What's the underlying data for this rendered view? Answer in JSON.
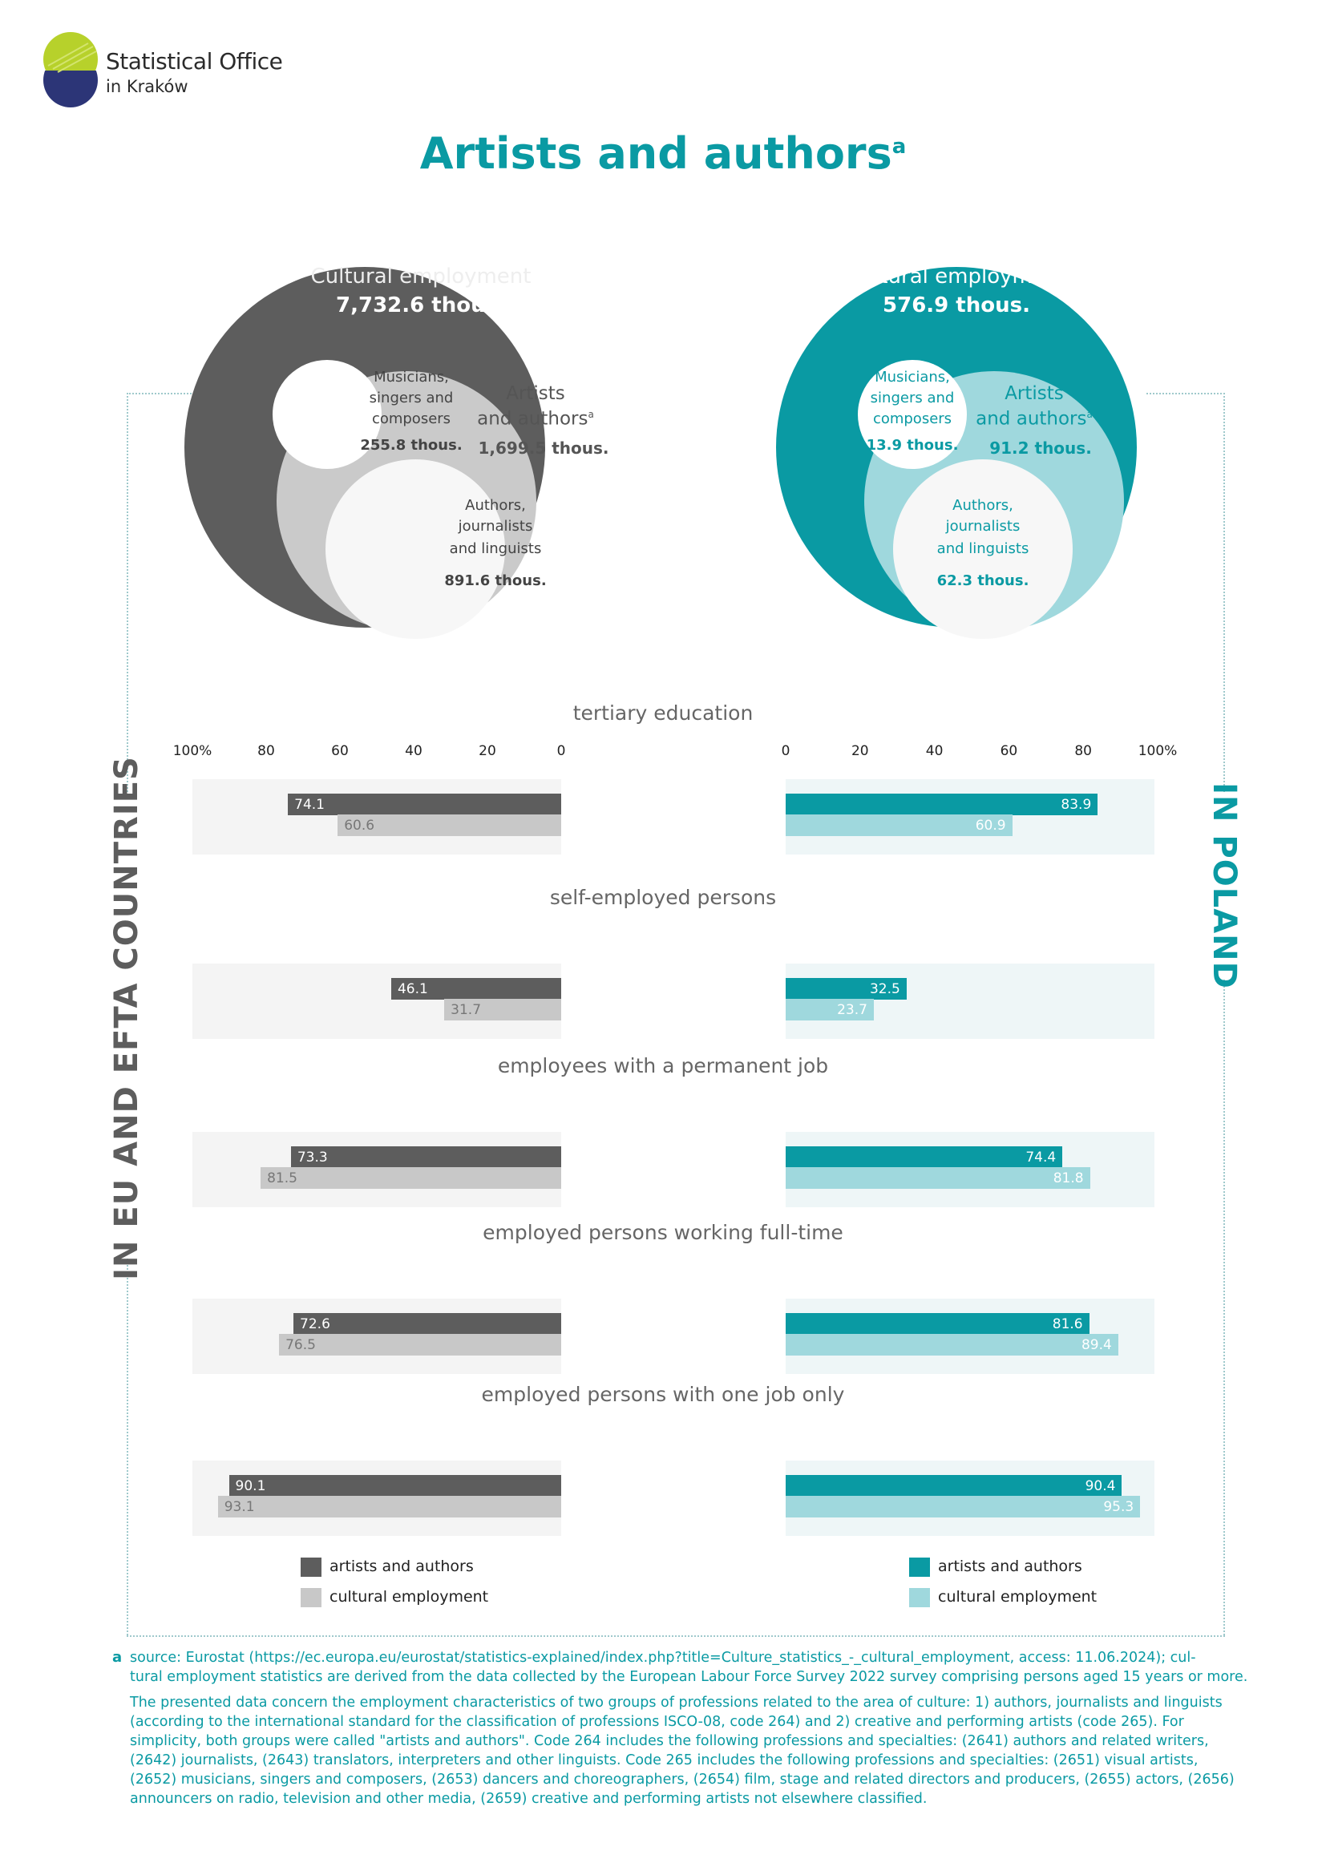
{
  "header": {
    "org_line1": "Statistical Office",
    "org_line2": "in Kraków",
    "title": "Artists and authors",
    "title_sup": "a"
  },
  "colors": {
    "eu_dark": "#5d5d5d",
    "eu_light": "#c8c8c8",
    "pl_dark": "#0a9aa3",
    "pl_light": "#9fd8dd",
    "accent": "#0a9aa3"
  },
  "side_labels": {
    "left": "IN EU AND EFTA COUNTRIES",
    "right": "IN POLAND"
  },
  "venn": {
    "eu": {
      "outer_label": "Cultural employment",
      "outer_value": "7,732.6 thous.",
      "mid_label_1": "Artists",
      "mid_label_2": "and authors",
      "mid_sup": "a",
      "mid_value": "1,699.5 thous.",
      "small_label_1": "Musicians,",
      "small_label_2": "singers and",
      "small_label_3": "composers",
      "small_value": "255.8 thous.",
      "inner_label_1": "Authors,",
      "inner_label_2": "journalists",
      "inner_label_3": "and linguists",
      "inner_value": "891.6 thous."
    },
    "pl": {
      "outer_label": "Cultural employment",
      "outer_value": "576.9 thous.",
      "mid_label_1": "Artists",
      "mid_label_2": "and authors",
      "mid_sup": "a",
      "mid_value": "91.2 thous.",
      "small_label_1": "Musicians,",
      "small_label_2": "singers and",
      "small_label_3": "composers",
      "small_value": "13.9 thous.",
      "inner_label_1": "Authors,",
      "inner_label_2": "journalists",
      "inner_label_3": "and linguists",
      "inner_value": "62.3 thous."
    }
  },
  "chart_data": {
    "type": "bar",
    "orientation": "horizontal",
    "axis_eu": {
      "ticks": [
        "100%",
        "80",
        "60",
        "40",
        "20",
        "0"
      ],
      "range": [
        0,
        100
      ],
      "direction": "right-to-left"
    },
    "axis_pl": {
      "ticks": [
        "0",
        "20",
        "40",
        "60",
        "80",
        "100%"
      ],
      "range": [
        0,
        100
      ],
      "direction": "left-to-right"
    },
    "categories": [
      "tertiary education",
      "self-employed persons",
      "employees with a permanent job",
      "employed persons working full-time",
      "employed persons with one job only"
    ],
    "eu": {
      "artists_and_authors": [
        74.1,
        46.1,
        73.3,
        72.6,
        90.1
      ],
      "cultural_employment": [
        60.6,
        31.7,
        81.5,
        76.5,
        93.1
      ],
      "artists_and_authors_labels": [
        "74.1",
        "46.1",
        "73.3",
        "72.6",
        "90.1"
      ],
      "cultural_employment_labels": [
        "60.6",
        "31.7",
        "81.5",
        "76.5",
        "93.1"
      ]
    },
    "pl": {
      "artists_and_authors": [
        83.9,
        32.5,
        74.4,
        81.6,
        90.4
      ],
      "cultural_employment": [
        60.9,
        23.7,
        81.8,
        89.4,
        95.3
      ],
      "artists_and_authors_labels": [
        "83.9",
        "32.5",
        "74.4",
        "81.6",
        "90.4"
      ],
      "cultural_employment_labels": [
        "60.9",
        "23.7",
        "81.8",
        "89.4",
        "95.3"
      ]
    },
    "legend": {
      "series_1": "artists and authors",
      "series_2": "cultural employment"
    }
  },
  "footnote": {
    "marker": "a",
    "line1": "source: Eurostat  (https://ec.europa.eu/eurostat/statistics-explained/index.php?title=Culture_statistics_-_cultural_employment,  access: 11.06.2024); cul-",
    "line2": "tural employment statistics are derived from the data collected by the European Labour Force Survey 2022 survey comprising persons aged 15 years or more.",
    "para": "The presented data concern the employment characteristics of two groups of professions related to the area of culture: 1) authors, journalists and linguists (according to the international standard for the classification of professions ISCO-08, code 264) and 2) creative and performing artists (code 265). For simplicity, both groups were called \"artists and authors\". Code 264 includes the following professions and specialties: (2641) authors and related writers, (2642) journalists, (2643) translators, interpreters and other linguists. Code 265 includes the following professions and specialties: (2651) visual artists, (2652) musicians, singers and composers, (2653) dancers and choreographers, (2654) film, stage and related directors and producers, (2655) actors, (2656) announcers on radio, television and other media, (2659) creative and performing artists not elsewhere classified."
  }
}
